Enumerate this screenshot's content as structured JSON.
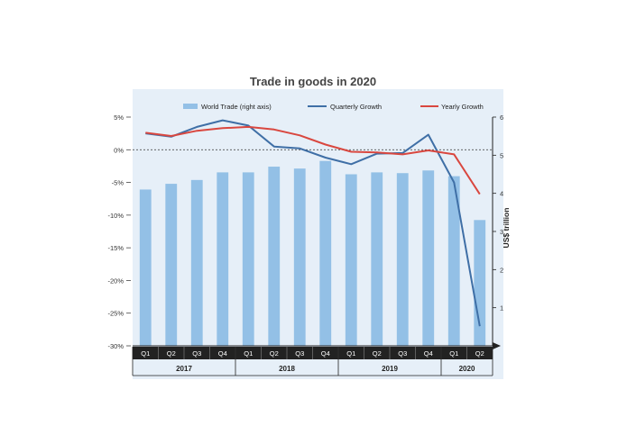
{
  "colors": {
    "background": "#e6eff8",
    "bar": "#93c0e6",
    "quarterly_line": "#3f6fa6",
    "yearly_line": "#d9473f",
    "quarter_band": "#222222"
  },
  "chart_data": {
    "type": "bar+line",
    "title": "Trade in goods in 2020",
    "quarters": [
      "Q1",
      "Q2",
      "Q3",
      "Q4",
      "Q1",
      "Q2",
      "Q3",
      "Q4",
      "Q1",
      "Q2",
      "Q3",
      "Q4",
      "Q1",
      "Q2"
    ],
    "years": [
      {
        "label": "2017",
        "span": 4
      },
      {
        "label": "2018",
        "span": 4
      },
      {
        "label": "2019",
        "span": 4
      },
      {
        "label": "2020",
        "span": 2
      }
    ],
    "left_axis": {
      "ylim": [
        -30,
        5
      ],
      "ticks": [
        5,
        0,
        -5,
        -10,
        -15,
        -20,
        -25,
        -30
      ],
      "tick_labels": [
        "5%",
        "0%",
        "-5%",
        "-10%",
        "-15%",
        "-20%",
        "-25%",
        "-30%"
      ]
    },
    "right_axis": {
      "label": "US$ trillion",
      "ylim": [
        0,
        6
      ],
      "ticks": [
        1,
        2,
        3,
        4,
        5,
        6
      ],
      "tick_labels": [
        "1",
        "2",
        "3",
        "4",
        "5",
        "6"
      ]
    },
    "legend": [
      "World Trade (right axis)",
      "Quarterly Growth",
      "Yearly Growth"
    ],
    "series": [
      {
        "name": "World Trade (right axis)",
        "type": "bar",
        "axis": "right",
        "values": [
          4.1,
          4.25,
          4.35,
          4.55,
          4.55,
          4.7,
          4.65,
          4.85,
          4.5,
          4.55,
          4.53,
          4.6,
          4.45,
          3.3
        ]
      },
      {
        "name": "Quarterly Growth",
        "type": "line",
        "axis": "left",
        "values": [
          2.5,
          2.0,
          3.5,
          4.5,
          3.7,
          0.5,
          0.2,
          -1.2,
          -2.2,
          -0.6,
          -0.5,
          2.3,
          -5.0,
          -27
        ]
      },
      {
        "name": "Yearly Growth",
        "type": "line",
        "axis": "left",
        "values": [
          2.6,
          2.1,
          2.9,
          3.3,
          3.5,
          3.1,
          2.2,
          0.8,
          -0.3,
          -0.4,
          -0.7,
          -0.1,
          -0.7,
          -6.8
        ]
      }
    ],
    "reference_line": {
      "y": 0,
      "style": "dashed"
    }
  }
}
